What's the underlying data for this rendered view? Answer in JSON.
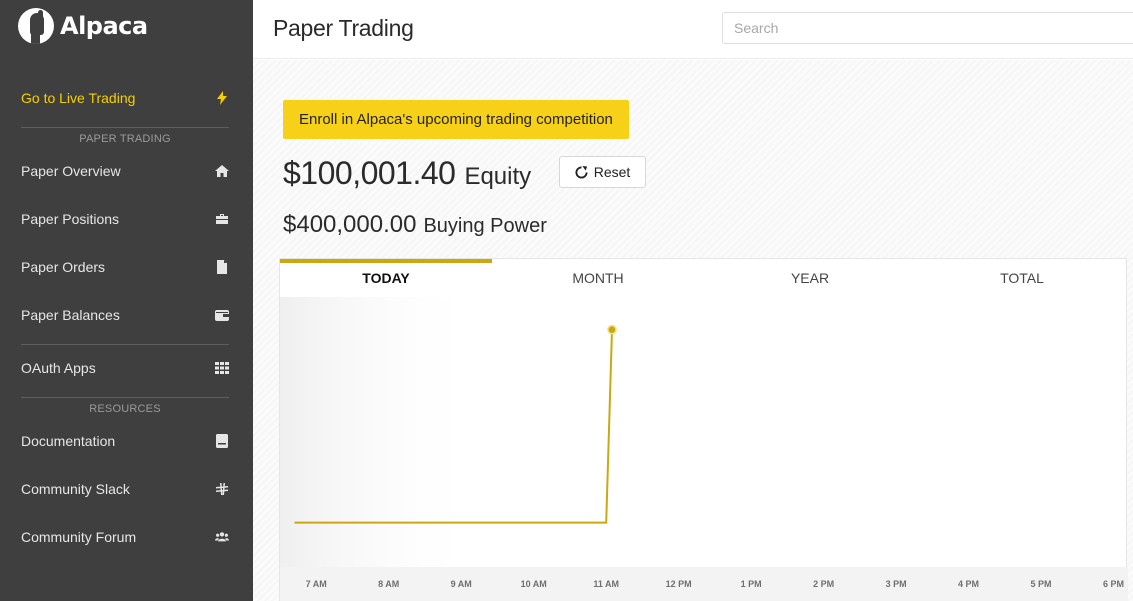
{
  "brand": {
    "name": "Alpaca"
  },
  "sidebar": {
    "live_trading": {
      "label": "Go to Live Trading",
      "icon": "bolt-icon"
    },
    "sections": {
      "paper_trading": "PAPER TRADING",
      "resources": "RESOURCES"
    },
    "paper_items": [
      {
        "label": "Paper Overview",
        "icon": "home-icon"
      },
      {
        "label": "Paper Positions",
        "icon": "briefcase-icon"
      },
      {
        "label": "Paper Orders",
        "icon": "document-icon"
      },
      {
        "label": "Paper Balances",
        "icon": "wallet-icon"
      }
    ],
    "oauth": {
      "label": "OAuth Apps",
      "icon": "grid-icon"
    },
    "resource_items": [
      {
        "label": "Documentation",
        "icon": "book-icon"
      },
      {
        "label": "Community Slack",
        "icon": "slack-icon"
      },
      {
        "label": "Community Forum",
        "icon": "users-icon"
      }
    ]
  },
  "header": {
    "title": "Paper Trading",
    "search_placeholder": "Search"
  },
  "main": {
    "enroll_label": "Enroll in Alpaca's upcoming trading competition",
    "equity_value": "$100,001.40",
    "equity_label": "Equity",
    "reset_label": "Reset",
    "buying_power_value": "$400,000.00",
    "buying_power_label": "Buying Power"
  },
  "chart_tabs": [
    "TODAY",
    "MONTH",
    "YEAR",
    "TOTAL"
  ],
  "active_tab": "TODAY",
  "colors": {
    "sidebar_bg": "#3f3f3f",
    "accent_yellow": "#f7d117",
    "line_color": "#c9a90f"
  },
  "chart_data": {
    "type": "line",
    "x_ticks": [
      "7 AM",
      "8 AM",
      "9 AM",
      "10 AM",
      "11 AM",
      "12 PM",
      "1 PM",
      "2 PM",
      "3 PM",
      "4 PM",
      "5 PM",
      "6 PM"
    ],
    "series": [
      {
        "points": [
          {
            "x": 6.7,
            "y": 100000.0
          },
          {
            "x": 11.0,
            "y": 100000.0
          },
          {
            "x": 11.08,
            "y": 100001.4
          }
        ]
      }
    ],
    "ylim": [
      99999.75,
      100001.55
    ],
    "xlim": [
      6.5,
      18.2
    ],
    "grid": false
  }
}
